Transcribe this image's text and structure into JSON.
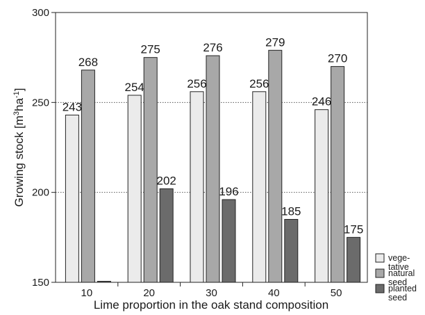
{
  "chart_data": {
    "type": "bar",
    "categories": [
      "10",
      "20",
      "30",
      "40",
      "50"
    ],
    "series": [
      {
        "name": "vegetative",
        "legend_lines": [
          "vege-",
          "tative"
        ],
        "color": "#ebebeb",
        "values": [
          243,
          254,
          256,
          256,
          246
        ]
      },
      {
        "name": "natural seed",
        "legend_lines": [
          "natural",
          "seed"
        ],
        "color": "#a8a8a8",
        "values": [
          268,
          275,
          276,
          279,
          270
        ]
      },
      {
        "name": "planted seed",
        "legend_lines": [
          "planted",
          "seed"
        ],
        "color": "#6b6b6b",
        "values": [
          150,
          202,
          196,
          185,
          175
        ]
      }
    ],
    "data_labels": [
      [
        "243",
        "254",
        "256",
        "256",
        "246"
      ],
      [
        "268",
        "275",
        "276",
        "279",
        "270"
      ],
      [
        "",
        "202",
        "196",
        "185",
        "175"
      ]
    ],
    "xlabel": "Lime proportion in the oak stand composition",
    "ylabel_main": "Growing stock [m",
    "ylabel_sup1": "3",
    "ylabel_mid": "ha",
    "ylabel_sup2": "-1",
    "ylabel_end": "]",
    "ylim": [
      150,
      300
    ],
    "yticks": [
      150,
      200,
      250,
      300
    ],
    "gridlines": [
      200,
      250
    ],
    "grid_style": "dotted",
    "legend_position": "right"
  }
}
